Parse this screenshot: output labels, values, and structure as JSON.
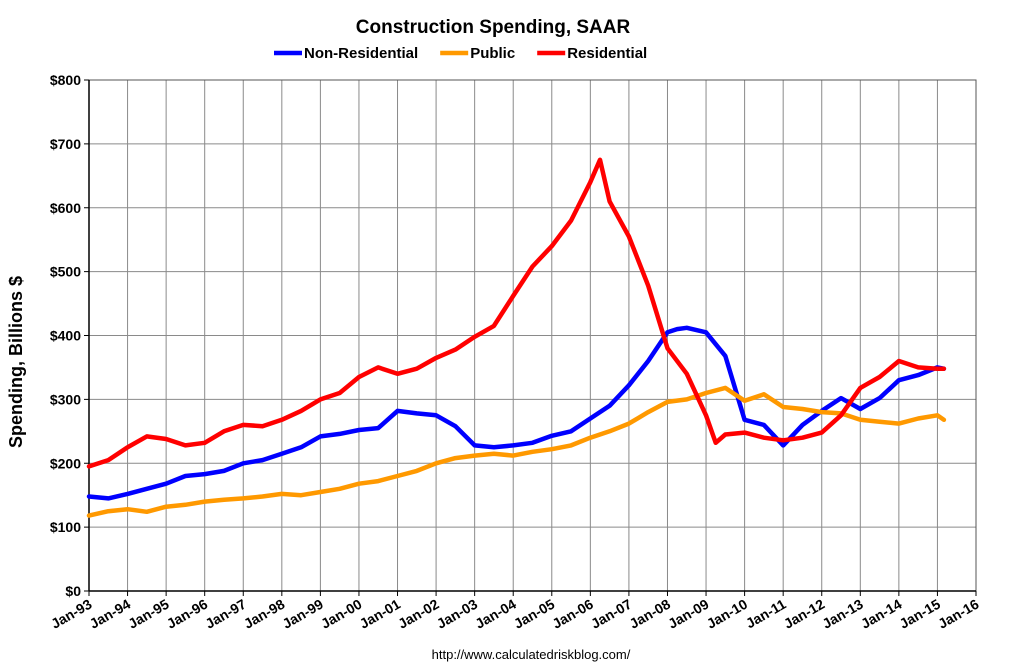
{
  "chart_data": {
    "type": "line",
    "title": "Construction Spending, SAAR",
    "ylabel": "Spending, Billions $",
    "xlabel": "",
    "source": "http://www.calculatedriskblog.com/",
    "ylim": [
      0,
      800
    ],
    "xlim": [
      "Jan-93",
      "Jan-16"
    ],
    "yticks": [
      "$0",
      "$100",
      "$200",
      "$300",
      "$400",
      "$500",
      "$600",
      "$700",
      "$800"
    ],
    "xticks": [
      "Jan-93",
      "Jan-94",
      "Jan-95",
      "Jan-96",
      "Jan-97",
      "Jan-98",
      "Jan-99",
      "Jan-00",
      "Jan-01",
      "Jan-02",
      "Jan-03",
      "Jan-04",
      "Jan-05",
      "Jan-06",
      "Jan-07",
      "Jan-08",
      "Jan-09",
      "Jan-10",
      "Jan-11",
      "Jan-12",
      "Jan-13",
      "Jan-14",
      "Jan-15",
      "Jan-16"
    ],
    "grid": true,
    "legend_position": "top",
    "series": [
      {
        "name": "Non-Residential",
        "color": "#0000ff",
        "points": [
          [
            "Jan-93",
            148
          ],
          [
            "Jul-93",
            145
          ],
          [
            "Jan-94",
            152
          ],
          [
            "Jul-94",
            160
          ],
          [
            "Jan-95",
            168
          ],
          [
            "Jul-95",
            180
          ],
          [
            "Jan-96",
            183
          ],
          [
            "Jul-96",
            188
          ],
          [
            "Jan-97",
            200
          ],
          [
            "Jul-97",
            205
          ],
          [
            "Jan-98",
            215
          ],
          [
            "Jul-98",
            225
          ],
          [
            "Jan-99",
            242
          ],
          [
            "Jul-99",
            246
          ],
          [
            "Jan-00",
            252
          ],
          [
            "Jul-00",
            255
          ],
          [
            "Jan-01",
            282
          ],
          [
            "Jul-01",
            278
          ],
          [
            "Jan-02",
            275
          ],
          [
            "Jul-02",
            258
          ],
          [
            "Jan-03",
            228
          ],
          [
            "Jul-03",
            225
          ],
          [
            "Jan-04",
            228
          ],
          [
            "Jul-04",
            232
          ],
          [
            "Jan-05",
            243
          ],
          [
            "Jul-05",
            250
          ],
          [
            "Jan-06",
            270
          ],
          [
            "Jul-06",
            290
          ],
          [
            "Jan-07",
            322
          ],
          [
            "Jul-07",
            360
          ],
          [
            "Jan-08",
            405
          ],
          [
            "Apr-08",
            410
          ],
          [
            "Jul-08",
            412
          ],
          [
            "Jan-09",
            405
          ],
          [
            "Jul-09",
            368
          ],
          [
            "Jan-10",
            268
          ],
          [
            "Jul-10",
            260
          ],
          [
            "Jan-11",
            228
          ],
          [
            "Jul-11",
            260
          ],
          [
            "Jan-12",
            282
          ],
          [
            "Jul-12",
            302
          ],
          [
            "Jan-13",
            285
          ],
          [
            "Jul-13",
            302
          ],
          [
            "Jan-14",
            330
          ],
          [
            "Jul-14",
            338
          ],
          [
            "Jan-15",
            350
          ],
          [
            "Mar-15",
            348
          ]
        ]
      },
      {
        "name": "Public",
        "color": "#ff9900",
        "points": [
          [
            "Jan-93",
            118
          ],
          [
            "Jul-93",
            125
          ],
          [
            "Jan-94",
            128
          ],
          [
            "Jul-94",
            124
          ],
          [
            "Jan-95",
            132
          ],
          [
            "Jul-95",
            135
          ],
          [
            "Jan-96",
            140
          ],
          [
            "Jul-96",
            143
          ],
          [
            "Jan-97",
            145
          ],
          [
            "Jul-97",
            148
          ],
          [
            "Jan-98",
            152
          ],
          [
            "Jul-98",
            150
          ],
          [
            "Jan-99",
            155
          ],
          [
            "Jul-99",
            160
          ],
          [
            "Jan-00",
            168
          ],
          [
            "Jul-00",
            172
          ],
          [
            "Jan-01",
            180
          ],
          [
            "Jul-01",
            188
          ],
          [
            "Jan-02",
            200
          ],
          [
            "Jul-02",
            208
          ],
          [
            "Jan-03",
            212
          ],
          [
            "Jul-03",
            215
          ],
          [
            "Jan-04",
            212
          ],
          [
            "Jul-04",
            218
          ],
          [
            "Jan-05",
            222
          ],
          [
            "Jul-05",
            228
          ],
          [
            "Jan-06",
            240
          ],
          [
            "Jul-06",
            250
          ],
          [
            "Jan-07",
            262
          ],
          [
            "Jul-07",
            280
          ],
          [
            "Jan-08",
            296
          ],
          [
            "Jul-08",
            300
          ],
          [
            "Jan-09",
            310
          ],
          [
            "Jul-09",
            318
          ],
          [
            "Jan-10",
            298
          ],
          [
            "Jul-10",
            308
          ],
          [
            "Jan-11",
            288
          ],
          [
            "Jul-11",
            285
          ],
          [
            "Jan-12",
            280
          ],
          [
            "Jul-12",
            278
          ],
          [
            "Jan-13",
            268
          ],
          [
            "Jul-13",
            265
          ],
          [
            "Jan-14",
            262
          ],
          [
            "Jul-14",
            270
          ],
          [
            "Jan-15",
            275
          ],
          [
            "Mar-15",
            268
          ]
        ]
      },
      {
        "name": "Residential",
        "color": "#ff0000",
        "points": [
          [
            "Jan-93",
            195
          ],
          [
            "Jul-93",
            205
          ],
          [
            "Jan-94",
            225
          ],
          [
            "Jul-94",
            242
          ],
          [
            "Jan-95",
            238
          ],
          [
            "Jul-95",
            228
          ],
          [
            "Jan-96",
            232
          ],
          [
            "Jul-96",
            250
          ],
          [
            "Jan-97",
            260
          ],
          [
            "Jul-97",
            258
          ],
          [
            "Jan-98",
            268
          ],
          [
            "Jul-98",
            282
          ],
          [
            "Jan-99",
            300
          ],
          [
            "Jul-99",
            310
          ],
          [
            "Jan-00",
            335
          ],
          [
            "Jul-00",
            350
          ],
          [
            "Jan-01",
            340
          ],
          [
            "Jul-01",
            348
          ],
          [
            "Jan-02",
            365
          ],
          [
            "Jul-02",
            378
          ],
          [
            "Jan-03",
            398
          ],
          [
            "Jul-03",
            415
          ],
          [
            "Jan-04",
            462
          ],
          [
            "Jul-04",
            508
          ],
          [
            "Jan-05",
            540
          ],
          [
            "Jul-05",
            580
          ],
          [
            "Jan-06",
            640
          ],
          [
            "Apr-06",
            675
          ],
          [
            "Jul-06",
            610
          ],
          [
            "Jan-07",
            555
          ],
          [
            "Jul-07",
            478
          ],
          [
            "Jan-08",
            380
          ],
          [
            "Jul-08",
            340
          ],
          [
            "Jan-09",
            275
          ],
          [
            "Apr-09",
            232
          ],
          [
            "Jul-09",
            245
          ],
          [
            "Jan-10",
            248
          ],
          [
            "Jul-10",
            240
          ],
          [
            "Jan-11",
            236
          ],
          [
            "Jul-11",
            240
          ],
          [
            "Jan-12",
            248
          ],
          [
            "Jul-12",
            275
          ],
          [
            "Jan-13",
            318
          ],
          [
            "Jul-13",
            335
          ],
          [
            "Jan-14",
            360
          ],
          [
            "Jul-14",
            350
          ],
          [
            "Jan-15",
            348
          ],
          [
            "Mar-15",
            348
          ]
        ]
      }
    ]
  }
}
